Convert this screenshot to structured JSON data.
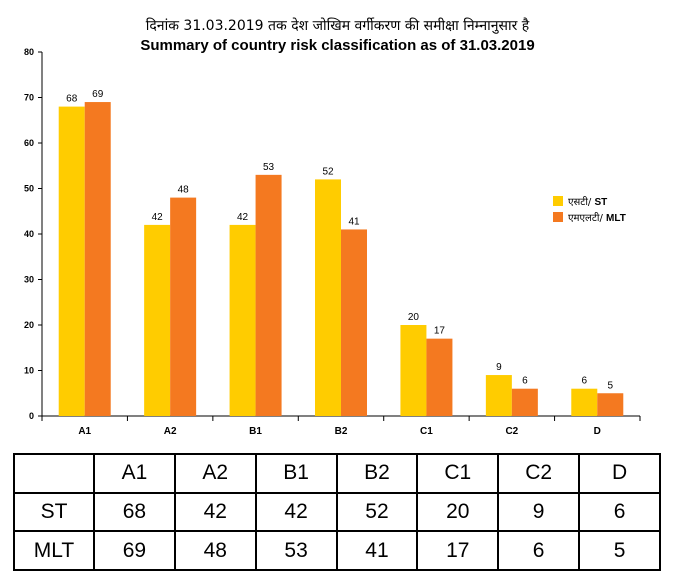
{
  "chart_data": {
    "type": "bar",
    "title_hindi": "दिनांक 31.03.2019 तक देश जोखिम वर्गीकरण की समीक्षा निम्नानुसार है",
    "title": "Summary of country risk classification as of 31.03.2019",
    "xlabel": "",
    "ylabel": "",
    "categories": [
      "A1",
      "A2",
      "B1",
      "B2",
      "C1",
      "C2",
      "D"
    ],
    "series": [
      {
        "name": "ST",
        "legend_hindi": "एसटी/",
        "color": "#FFCC00",
        "values": [
          68,
          42,
          42,
          52,
          20,
          9,
          6
        ]
      },
      {
        "name": "MLT",
        "legend_hindi": "एमएलटी/",
        "color": "#F47920",
        "values": [
          69,
          48,
          53,
          41,
          17,
          6,
          5
        ]
      }
    ],
    "ylim": [
      0,
      80
    ],
    "yticks": [
      0,
      10,
      20,
      30,
      40,
      50,
      60,
      70,
      80
    ],
    "grid": false,
    "legend_position": "right",
    "data_labels": true
  },
  "table": {
    "header": [
      "",
      "A1",
      "A2",
      "B1",
      "B2",
      "C1",
      "C2",
      "D"
    ],
    "rows": [
      {
        "label": "ST",
        "values": [
          "68",
          "42",
          "42",
          "52",
          "20",
          "9",
          "6"
        ]
      },
      {
        "label": "MLT",
        "values": [
          "69",
          "48",
          "53",
          "41",
          "17",
          "6",
          "5"
        ]
      }
    ]
  }
}
